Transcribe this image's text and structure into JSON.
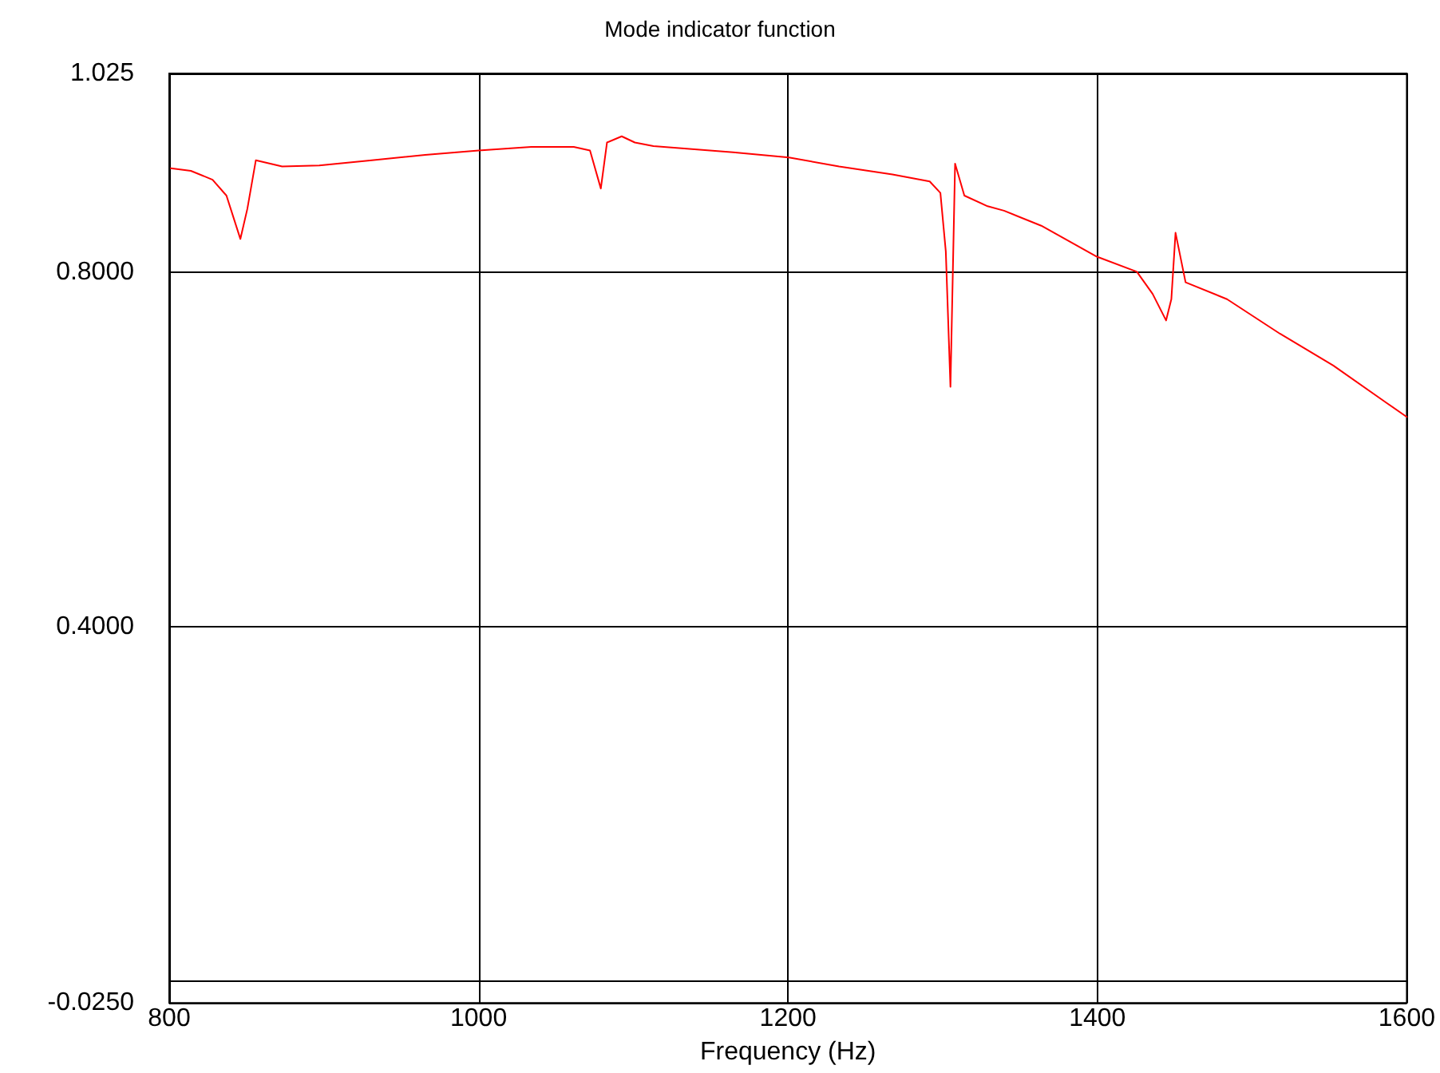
{
  "chart_data": {
    "type": "line",
    "title": "Mode indicator function",
    "xlabel": "Frequency (Hz)",
    "x": [
      801,
      814,
      828,
      837,
      846,
      850.5,
      856,
      873,
      897,
      931,
      965.5,
      1000,
      1034,
      1061.5,
      1072,
      1079,
      1083,
      1092.5,
      1101,
      1113,
      1164.5,
      1200.6,
      1233,
      1267.5,
      1291.6,
      1298.5,
      1302,
      1305,
      1308,
      1314,
      1329,
      1339.6,
      1363.7,
      1399.7,
      1425.5,
      1435.7,
      1444.4,
      1447.8,
      1450.5,
      1457,
      1483.8,
      1518,
      1552.5,
      1586.8,
      1600
    ],
    "series": [
      {
        "color": "#ff0000",
        "values": [
          0.918,
          0.915,
          0.905,
          0.887,
          0.838,
          0.872,
          0.927,
          0.92,
          0.921,
          0.927,
          0.933,
          0.938,
          0.942,
          0.942,
          0.938,
          0.895,
          0.947,
          0.954,
          0.947,
          0.943,
          0.936,
          0.93,
          0.92,
          0.911,
          0.903,
          0.89,
          0.824,
          0.671,
          0.923,
          0.887,
          0.875,
          0.87,
          0.853,
          0.818,
          0.801,
          0.776,
          0.746,
          0.77,
          0.845,
          0.789,
          0.77,
          0.731,
          0.695,
          0.653,
          0.637
        ]
      }
    ],
    "xlim": [
      800,
      1600
    ],
    "xticks": [
      800,
      1000,
      1200,
      1400,
      1600
    ],
    "ylim": [
      -0.025,
      1.025
    ],
    "yticks": [
      {
        "value": -0.025,
        "label": "-0.0250"
      },
      {
        "value": 0,
        "label": null
      },
      {
        "value": 0.4,
        "label": "0.4000"
      },
      {
        "value": 0.8,
        "label": "0.8000"
      },
      {
        "value": 1.025,
        "label": "1.025"
      }
    ],
    "grid": true,
    "marker": "none",
    "line_style": "solid"
  }
}
